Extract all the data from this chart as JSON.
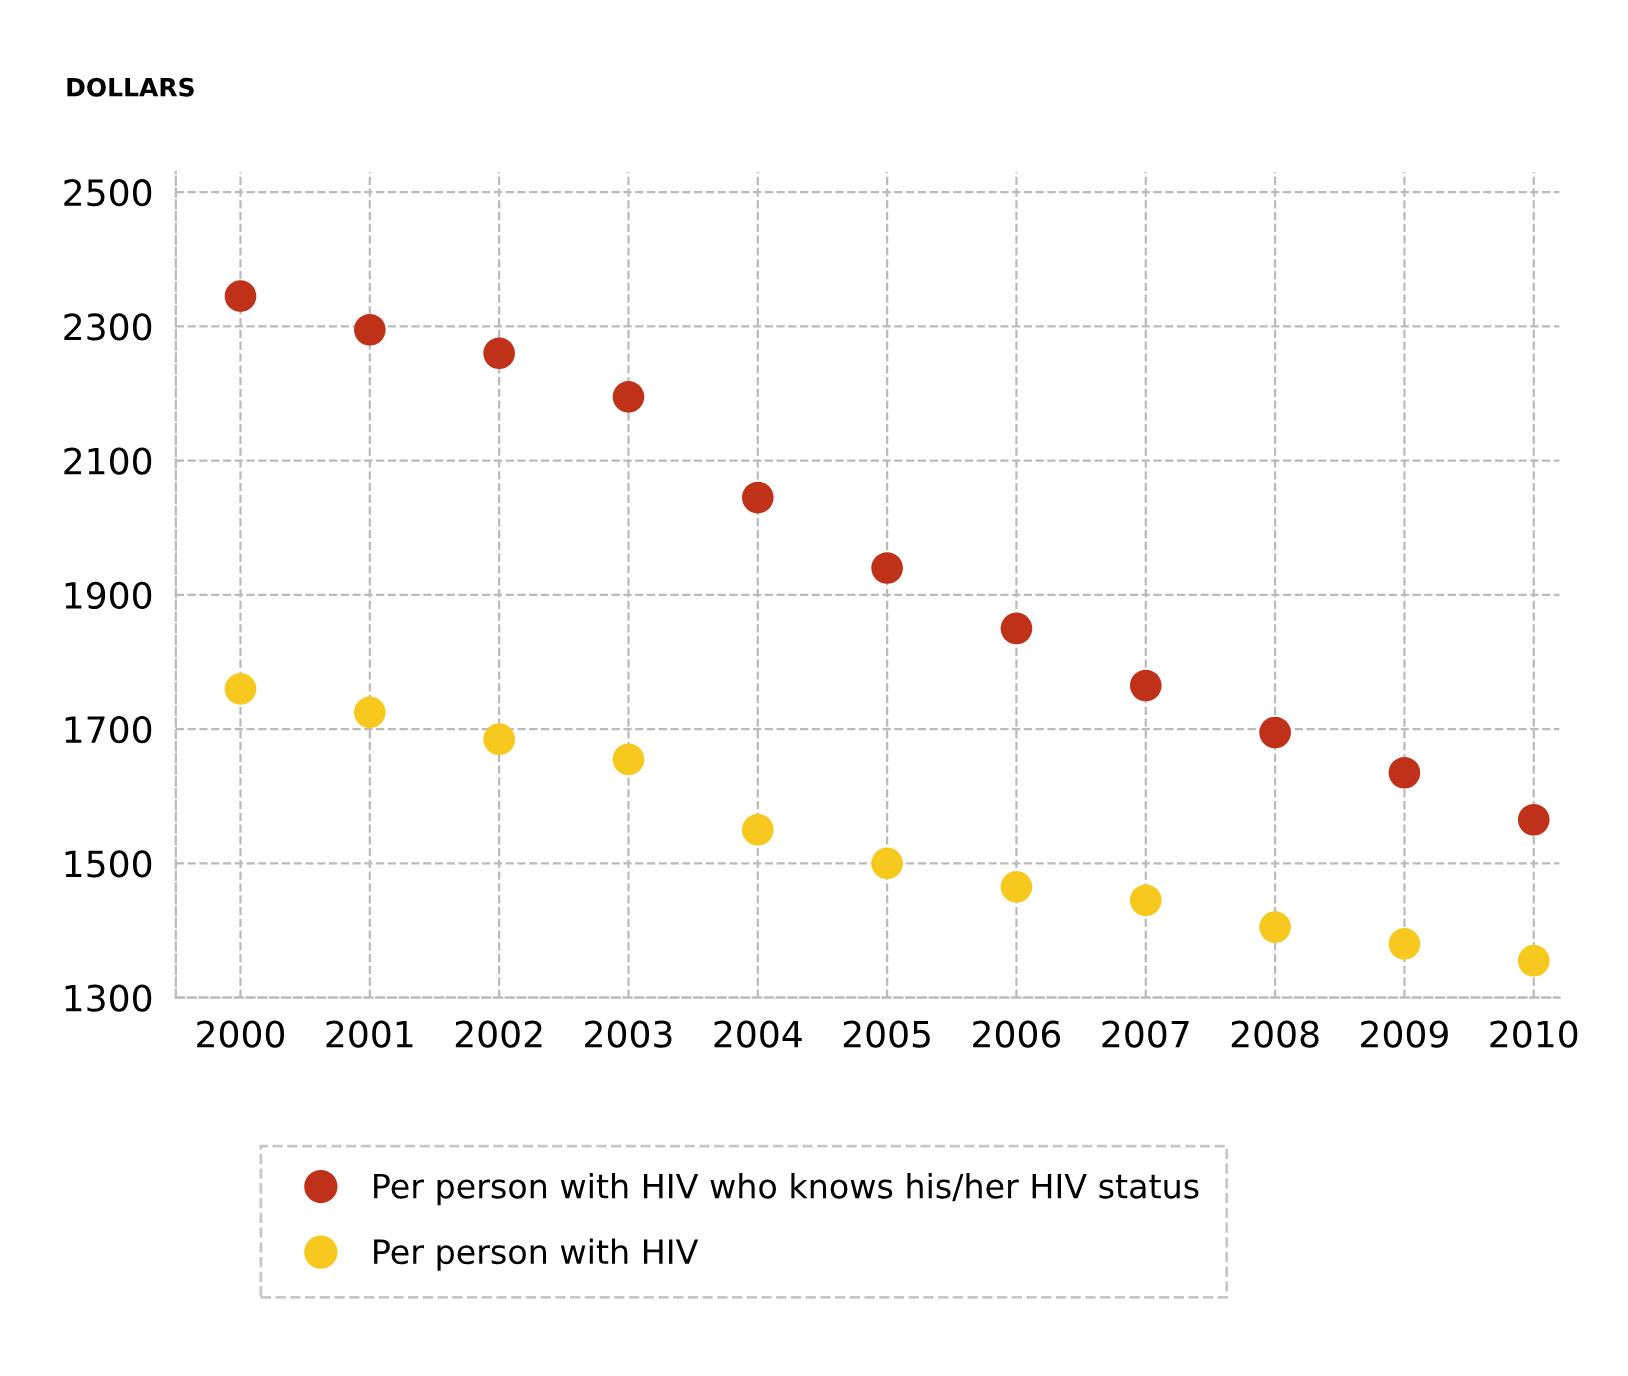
{
  "chart_data": {
    "type": "scatter",
    "ylabel": "DOLLARS",
    "x": [
      2000,
      2001,
      2002,
      2003,
      2004,
      2005,
      2006,
      2007,
      2008,
      2009,
      2010
    ],
    "series": [
      {
        "name": "Per person with HIV who knows his/her HIV status",
        "color": "#c0311a",
        "values": [
          2345,
          2295,
          2260,
          2195,
          2045,
          1940,
          1850,
          1765,
          1695,
          1635,
          1565
        ]
      },
      {
        "name": "Per person with HIV",
        "color": "#f7c81e",
        "values": [
          1760,
          1725,
          1685,
          1655,
          1550,
          1500,
          1465,
          1445,
          1405,
          1380,
          1355
        ]
      }
    ],
    "xlim": [
      1999.5,
      2010.2
    ],
    "xticks": [
      2000,
      2001,
      2002,
      2003,
      2004,
      2005,
      2006,
      2007,
      2008,
      2009,
      2010
    ],
    "ylim": [
      1300,
      2530
    ],
    "yticks": [
      1300,
      1500,
      1700,
      1900,
      2100,
      2300,
      2500
    ],
    "grid": true,
    "legend": "bottom left",
    "marker": "circle"
  }
}
